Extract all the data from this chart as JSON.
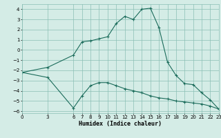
{
  "xlabel": "Humidex (Indice chaleur)",
  "ylabel": "",
  "background_color": "#d4ece6",
  "grid_color": "#8abfb5",
  "line_color": "#1a6b5a",
  "xlim": [
    0,
    23
  ],
  "ylim": [
    -6.2,
    4.5
  ],
  "yticks": [
    -6,
    -5,
    -4,
    -3,
    -2,
    -1,
    0,
    1,
    2,
    3,
    4
  ],
  "xticks": [
    0,
    3,
    6,
    7,
    8,
    9,
    10,
    11,
    12,
    13,
    14,
    15,
    16,
    17,
    18,
    19,
    20,
    21,
    22,
    23
  ],
  "line1_x": [
    0,
    3,
    6,
    7,
    8,
    9,
    10,
    11,
    12,
    13,
    14,
    15,
    16,
    17,
    18,
    19,
    20,
    21,
    22,
    23
  ],
  "line1_y": [
    -2.2,
    -1.7,
    -0.5,
    0.8,
    0.9,
    1.1,
    1.3,
    2.6,
    3.3,
    3.0,
    4.0,
    4.1,
    2.2,
    -1.2,
    -2.5,
    -3.3,
    -3.4,
    -4.2,
    -4.9,
    -5.8
  ],
  "line2_x": [
    0,
    3,
    6,
    7,
    8,
    9,
    10,
    11,
    12,
    13,
    14,
    15,
    16,
    17,
    18,
    19,
    20,
    21,
    22,
    23
  ],
  "line2_y": [
    -2.2,
    -2.7,
    -5.7,
    -4.5,
    -3.5,
    -3.2,
    -3.2,
    -3.5,
    -3.8,
    -4.0,
    -4.2,
    -4.5,
    -4.7,
    -4.8,
    -5.0,
    -5.1,
    -5.2,
    -5.3,
    -5.5,
    -5.8
  ]
}
